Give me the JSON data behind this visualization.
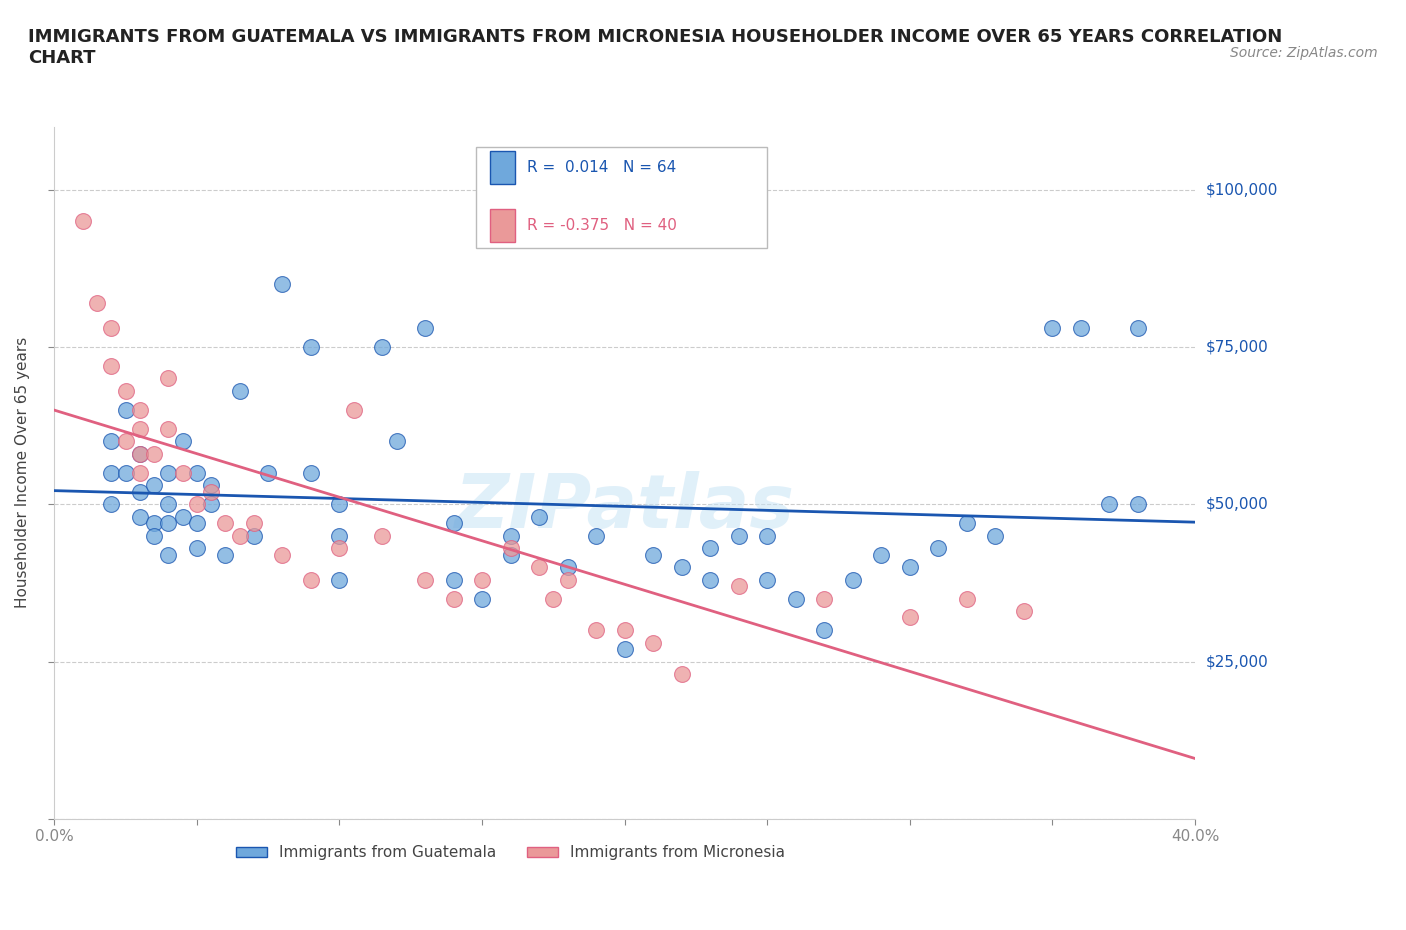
{
  "title": "IMMIGRANTS FROM GUATEMALA VS IMMIGRANTS FROM MICRONESIA HOUSEHOLDER INCOME OVER 65 YEARS CORRELATION\nCHART",
  "source": "Source: ZipAtlas.com",
  "ylabel": "Householder Income Over 65 years",
  "xlim": [
    0.0,
    0.4
  ],
  "ylim": [
    0,
    110000
  ],
  "yticks": [
    0,
    25000,
    50000,
    75000,
    100000
  ],
  "xticks": [
    0.0,
    0.05,
    0.1,
    0.15,
    0.2,
    0.25,
    0.3,
    0.35,
    0.4
  ],
  "blue_color": "#6fa8dc",
  "pink_color": "#ea9999",
  "blue_line_color": "#1a56b0",
  "pink_line_color": "#e06080",
  "legend_blue_label": "Immigrants from Guatemala",
  "legend_pink_label": "Immigrants from Micronesia",
  "r_blue": "0.014",
  "n_blue": "64",
  "r_pink": "-0.375",
  "n_pink": "40",
  "watermark": "ZIPatlas",
  "blue_x": [
    0.02,
    0.02,
    0.02,
    0.025,
    0.025,
    0.03,
    0.03,
    0.03,
    0.035,
    0.035,
    0.035,
    0.04,
    0.04,
    0.04,
    0.04,
    0.045,
    0.045,
    0.05,
    0.05,
    0.05,
    0.055,
    0.055,
    0.06,
    0.065,
    0.07,
    0.075,
    0.08,
    0.09,
    0.09,
    0.1,
    0.1,
    0.1,
    0.115,
    0.12,
    0.13,
    0.14,
    0.14,
    0.15,
    0.16,
    0.16,
    0.17,
    0.18,
    0.19,
    0.2,
    0.21,
    0.22,
    0.23,
    0.23,
    0.24,
    0.25,
    0.25,
    0.26,
    0.27,
    0.28,
    0.29,
    0.3,
    0.31,
    0.32,
    0.33,
    0.35,
    0.36,
    0.37,
    0.38,
    0.38
  ],
  "blue_y": [
    60000,
    55000,
    50000,
    65000,
    55000,
    58000,
    52000,
    48000,
    53000,
    47000,
    45000,
    50000,
    42000,
    55000,
    47000,
    60000,
    48000,
    55000,
    47000,
    43000,
    50000,
    53000,
    42000,
    68000,
    45000,
    55000,
    85000,
    75000,
    55000,
    50000,
    45000,
    38000,
    75000,
    60000,
    78000,
    38000,
    47000,
    35000,
    42000,
    45000,
    48000,
    40000,
    45000,
    27000,
    42000,
    40000,
    43000,
    38000,
    45000,
    45000,
    38000,
    35000,
    30000,
    38000,
    42000,
    40000,
    43000,
    47000,
    45000,
    78000,
    78000,
    50000,
    78000,
    50000
  ],
  "pink_x": [
    0.01,
    0.015,
    0.02,
    0.02,
    0.025,
    0.025,
    0.03,
    0.03,
    0.03,
    0.03,
    0.035,
    0.04,
    0.04,
    0.045,
    0.05,
    0.055,
    0.06,
    0.065,
    0.07,
    0.08,
    0.09,
    0.1,
    0.105,
    0.115,
    0.13,
    0.14,
    0.15,
    0.16,
    0.17,
    0.175,
    0.18,
    0.19,
    0.2,
    0.21,
    0.22,
    0.24,
    0.27,
    0.3,
    0.32,
    0.34
  ],
  "pink_y": [
    95000,
    82000,
    78000,
    72000,
    68000,
    60000,
    62000,
    58000,
    55000,
    65000,
    58000,
    70000,
    62000,
    55000,
    50000,
    52000,
    47000,
    45000,
    47000,
    42000,
    38000,
    43000,
    65000,
    45000,
    38000,
    35000,
    38000,
    43000,
    40000,
    35000,
    38000,
    30000,
    30000,
    28000,
    23000,
    37000,
    35000,
    32000,
    35000,
    33000
  ]
}
